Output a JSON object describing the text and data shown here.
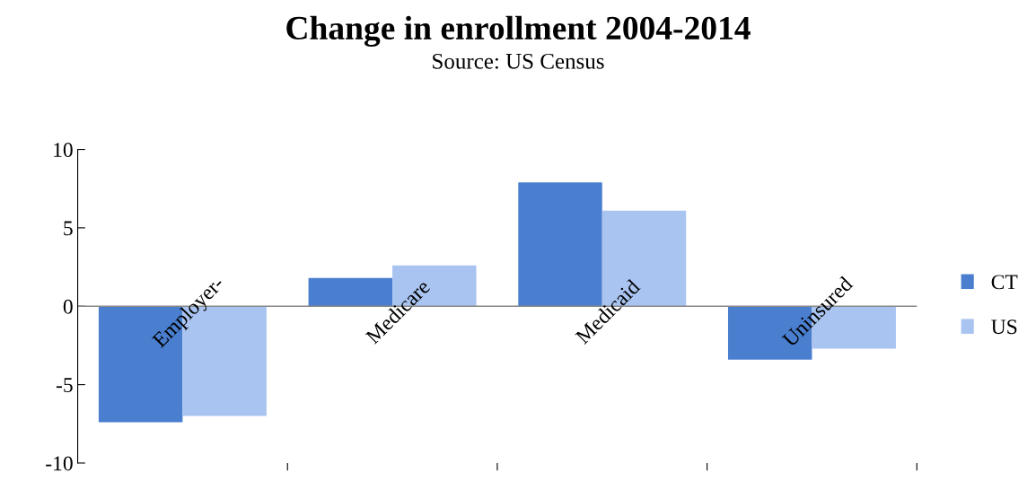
{
  "chart_data": {
    "type": "bar",
    "title": "Change in enrollment 2004-2014",
    "subtitle": "Source: US Census",
    "categories": [
      "Employer-",
      "Medicare",
      "Medicaid",
      "Uninsured"
    ],
    "series": [
      {
        "name": "CT",
        "color": "#4a7fcf",
        "values": [
          -7.4,
          1.8,
          7.9,
          -3.4
        ]
      },
      {
        "name": "US",
        "color": "#a9c4f0",
        "values": [
          -7.0,
          2.6,
          6.1,
          -2.7
        ]
      }
    ],
    "ylim": [
      -10,
      10
    ],
    "yticks": [
      -10,
      -5,
      0,
      5,
      10
    ],
    "grid": false,
    "legend": "right"
  }
}
